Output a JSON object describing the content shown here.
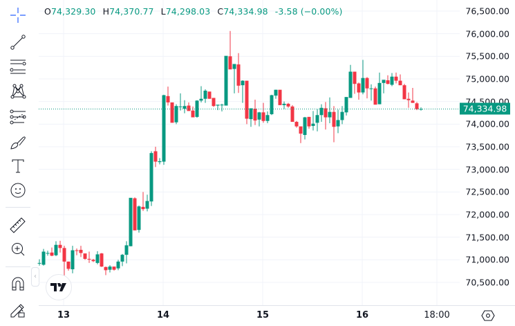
{
  "legend": {
    "open_key": "O",
    "open": "74,329.30",
    "high_key": "H",
    "high": "74,370.77",
    "low_key": "L",
    "low": "74,298.03",
    "close_key": "C",
    "close": "74,334.98",
    "change": "-3.58 (−0.00%)"
  },
  "last_price": "74,334.98",
  "colors": {
    "up": "#089981",
    "down": "#f23645",
    "grid": "#f0f3fa",
    "last_line": "#089981"
  },
  "toolbar": {
    "items": [
      {
        "name": "crosshair-icon"
      },
      {
        "name": "trend-line-icon"
      },
      {
        "name": "horizontal-lines-icon"
      },
      {
        "name": "pattern-icon"
      },
      {
        "name": "fib-retracement-icon"
      },
      {
        "name": "brush-icon"
      },
      {
        "name": "text-icon"
      },
      {
        "name": "emoji-icon"
      },
      {
        "name": "ruler-icon"
      },
      {
        "name": "zoom-in-icon"
      },
      {
        "name": "magnet-icon"
      },
      {
        "name": "lock-drawings-icon"
      }
    ]
  },
  "time_axis": {
    "labels": [
      {
        "text": "13",
        "bold": true
      },
      {
        "text": "14",
        "bold": true
      },
      {
        "text": "15",
        "bold": true
      },
      {
        "text": "16",
        "bold": true
      },
      {
        "text": "18:00",
        "bold": false
      }
    ]
  },
  "collapse_label": "‹",
  "chart_data": {
    "type": "candlestick",
    "title": "",
    "xlabel": "",
    "ylabel": "",
    "ylim": [
      70100,
      76750
    ],
    "grid": true,
    "y_ticks": [
      "76,500.00",
      "76,000.00",
      "75,500.00",
      "75,000.00",
      "74,500.00",
      "74,000.00",
      "73,500.00",
      "73,000.00",
      "72,500.00",
      "72,000.00",
      "71,500.00",
      "71,000.00",
      "70,500.00"
    ],
    "x_ticks": [
      "13",
      "14",
      "15",
      "16",
      "18:00"
    ],
    "candle_interval": "1h",
    "last_price": 74334.98,
    "ohlc": [
      [
        70920,
        71010,
        70870,
        70930
      ],
      [
        70890,
        71240,
        70870,
        71180
      ],
      [
        71150,
        71200,
        71090,
        71150
      ],
      [
        71160,
        71270,
        71080,
        71090
      ],
      [
        71100,
        71410,
        71080,
        71330
      ],
      [
        71330,
        71420,
        71160,
        71260
      ],
      [
        71260,
        71310,
        70470,
        70960
      ],
      [
        70960,
        70960,
        70760,
        70800
      ],
      [
        70790,
        71310,
        70700,
        71210
      ],
      [
        71210,
        71250,
        71100,
        71200
      ],
      [
        71220,
        71310,
        71060,
        71150
      ],
      [
        71140,
        71120,
        71000,
        71020
      ],
      [
        71020,
        71180,
        70930,
        71010
      ],
      [
        71000,
        71020,
        70950,
        70970
      ],
      [
        70930,
        71190,
        70900,
        71120
      ],
      [
        71140,
        71150,
        70840,
        70850
      ],
      [
        70840,
        70850,
        70660,
        70770
      ],
      [
        70780,
        70880,
        70720,
        70850
      ],
      [
        70850,
        70800,
        70760,
        70780
      ],
      [
        70810,
        71000,
        70770,
        70960
      ],
      [
        70960,
        71130,
        70860,
        71110
      ],
      [
        71110,
        71410,
        70920,
        71320
      ],
      [
        71300,
        72270,
        71300,
        72370
      ],
      [
        72360,
        72380,
        71650,
        71650
      ],
      [
        71660,
        72200,
        71600,
        72180
      ],
      [
        72170,
        72500,
        72080,
        72120
      ],
      [
        72130,
        72440,
        72070,
        72300
      ],
      [
        72290,
        73400,
        72190,
        73360
      ],
      [
        73400,
        73500,
        73050,
        73170
      ],
      [
        73160,
        73250,
        73110,
        73180
      ],
      [
        73170,
        74650,
        73100,
        74640
      ],
      [
        74620,
        74830,
        74410,
        74480
      ],
      [
        74480,
        74300,
        74050,
        74030
      ],
      [
        74040,
        74440,
        74000,
        74400
      ],
      [
        74380,
        74680,
        74300,
        74390
      ],
      [
        74340,
        74530,
        74240,
        74400
      ],
      [
        74410,
        74480,
        74330,
        74290
      ],
      [
        74300,
        74390,
        74200,
        74150
      ],
      [
        74160,
        74530,
        74140,
        74520
      ],
      [
        74520,
        74840,
        74480,
        74560
      ],
      [
        74560,
        74770,
        74470,
        74740
      ],
      [
        74720,
        74700,
        74560,
        74560
      ],
      [
        74580,
        74470,
        74380,
        74400
      ],
      [
        74410,
        74420,
        74310,
        74430
      ],
      [
        74430,
        74450,
        74280,
        74430
      ],
      [
        74410,
        75500,
        74410,
        75510
      ],
      [
        75500,
        76060,
        75220,
        75210
      ],
      [
        75220,
        75320,
        74680,
        75330
      ],
      [
        75320,
        75570,
        74690,
        74850
      ],
      [
        74860,
        74970,
        74470,
        74960
      ],
      [
        74960,
        74820,
        74000,
        74120
      ],
      [
        74110,
        74340,
        73940,
        74350
      ],
      [
        74340,
        74540,
        73980,
        74080
      ],
      [
        74100,
        74270,
        73950,
        74260
      ],
      [
        74260,
        74470,
        74030,
        74070
      ],
      [
        74070,
        74280,
        74020,
        74200
      ],
      [
        74220,
        74650,
        74200,
        74640
      ],
      [
        74630,
        74760,
        74560,
        74760
      ],
      [
        74760,
        74700,
        74420,
        74420
      ],
      [
        74420,
        74500,
        74330,
        74450
      ],
      [
        74450,
        74470,
        74360,
        74390
      ],
      [
        74390,
        74420,
        74050,
        74050
      ],
      [
        74050,
        74070,
        73920,
        73950
      ],
      [
        73950,
        73920,
        73580,
        73790
      ],
      [
        73760,
        74160,
        73660,
        74150
      ],
      [
        74160,
        74160,
        73900,
        73950
      ],
      [
        73960,
        74290,
        73860,
        74010
      ],
      [
        74030,
        74330,
        73840,
        74200
      ],
      [
        74200,
        74440,
        74050,
        74360
      ],
      [
        74350,
        74490,
        73880,
        74150
      ],
      [
        74150,
        74590,
        74020,
        74270
      ],
      [
        74270,
        74400,
        73600,
        73940
      ],
      [
        73950,
        74320,
        73800,
        74090
      ],
      [
        74090,
        74400,
        74000,
        74270
      ],
      [
        74260,
        74540,
        74190,
        74600
      ],
      [
        74580,
        75310,
        74580,
        75160
      ],
      [
        75160,
        75040,
        74670,
        74890
      ],
      [
        74900,
        74920,
        74540,
        74700
      ],
      [
        74700,
        75420,
        74660,
        75020
      ],
      [
        75020,
        75040,
        74570,
        74790
      ],
      [
        74790,
        74880,
        74520,
        74790
      ],
      [
        74790,
        74830,
        74500,
        74430
      ],
      [
        74440,
        75140,
        74440,
        74910
      ],
      [
        74910,
        74960,
        74680,
        74980
      ],
      [
        74970,
        75080,
        74880,
        74890
      ],
      [
        74870,
        75130,
        74840,
        75050
      ],
      [
        75050,
        75140,
        74900,
        74960
      ],
      [
        74960,
        75100,
        74860,
        74860
      ],
      [
        74860,
        74890,
        74550,
        74550
      ],
      [
        74560,
        74700,
        74360,
        74530
      ],
      [
        74520,
        74800,
        74470,
        74470
      ],
      [
        74460,
        74490,
        74310,
        74330
      ],
      [
        74330,
        74370,
        74300,
        74335
      ]
    ]
  }
}
